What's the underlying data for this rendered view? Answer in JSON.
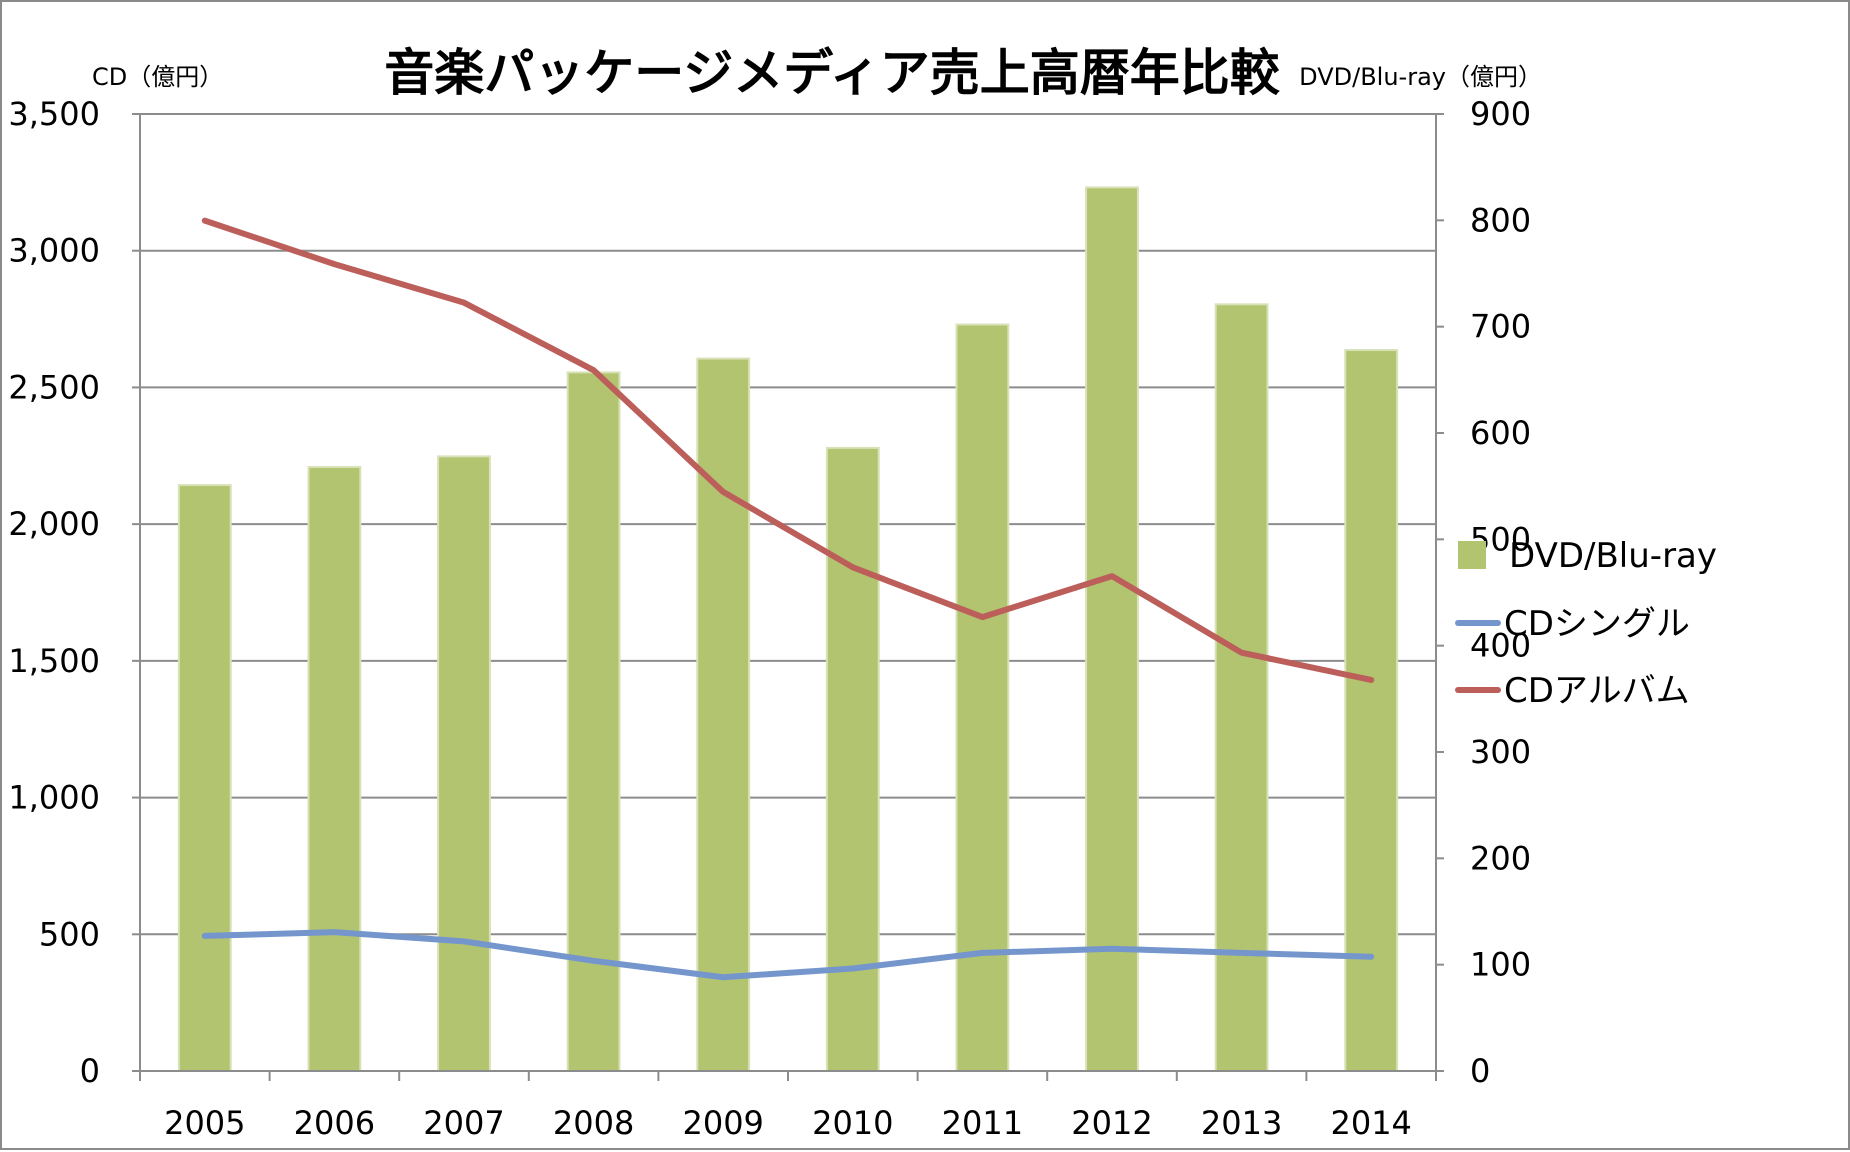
{
  "chart_data": {
    "type": "bar",
    "title": "音楽パッケージメディア売上高暦年比較",
    "y_left_label": "CD（億円）",
    "y_right_label": "DVD/Blu-ray（億円）",
    "categories": [
      "2005",
      "2006",
      "2007",
      "2008",
      "2009",
      "2010",
      "2011",
      "2012",
      "2013",
      "2014"
    ],
    "y_left_ticks": [
      "0",
      "500",
      "1,000",
      "1,500",
      "2,000",
      "2,500",
      "3,000",
      "3,500"
    ],
    "y_right_ticks": [
      "0",
      "100",
      "200",
      "300",
      "400",
      "500",
      "600",
      "700",
      "800",
      "900"
    ],
    "ylim_left": [
      0,
      3500
    ],
    "ylim_right": [
      0,
      900
    ],
    "grid": true,
    "legend_position": "right",
    "series": [
      {
        "name": "DVD/Blu-ray",
        "type": "bar",
        "axis": "right",
        "color": "#b2c46f",
        "values": [
          551,
          568,
          578,
          657,
          670,
          586,
          702,
          831,
          721,
          678
        ]
      },
      {
        "name": "CDシングル",
        "type": "line",
        "axis": "left",
        "color": "#7596cc",
        "values": [
          494,
          508,
          474,
          403,
          343,
          375,
          432,
          447,
          432,
          418
        ]
      },
      {
        "name": "CDアルバム",
        "type": "line",
        "axis": "left",
        "color": "#bc5f5b",
        "values": [
          3110,
          2951,
          2810,
          2563,
          2118,
          1842,
          1660,
          1810,
          1530,
          1430
        ]
      }
    ]
  }
}
